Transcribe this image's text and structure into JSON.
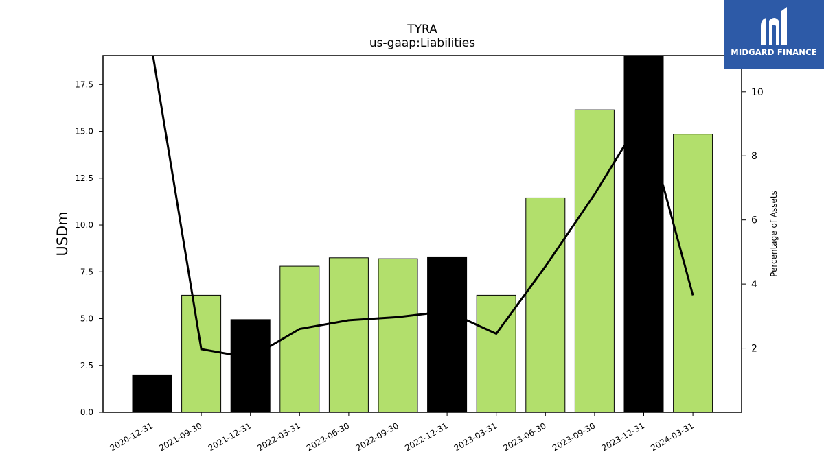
{
  "chart_data": {
    "type": "bar",
    "title": "TYRA",
    "subtitle": "us-gaap:Liabilities",
    "ylabel": "USDm",
    "y2label": "Percentage of Assets",
    "categories": [
      "2020-12-31",
      "2021-09-30",
      "2021-12-31",
      "2022-03-31",
      "2022-06-30",
      "2022-09-30",
      "2022-12-31",
      "2023-03-31",
      "2023-06-30",
      "2023-09-30",
      "2023-12-31",
      "2024-03-31"
    ],
    "values": [
      2.0,
      6.25,
      4.95,
      7.8,
      8.25,
      8.2,
      8.3,
      6.25,
      11.45,
      16.15,
      19.1,
      14.85
    ],
    "bar_colors": [
      "#000000",
      "#b2df6c",
      "#000000",
      "#b2df6c",
      "#b2df6c",
      "#b2df6c",
      "#000000",
      "#b2df6c",
      "#b2df6c",
      "#b2df6c",
      "#000000",
      "#b2df6c"
    ],
    "line_series": {
      "values": [
        11.3,
        1.97,
        1.7,
        2.6,
        2.87,
        2.97,
        3.15,
        2.45,
        4.55,
        6.8,
        9.3,
        3.65
      ]
    },
    "ylim": [
      0,
      19.05
    ],
    "y_ticks": [
      "0.0",
      "2.5",
      "5.0",
      "7.5",
      "10.0",
      "12.5",
      "15.0",
      "17.5"
    ],
    "y2lim": [
      0,
      11.13
    ],
    "y2_ticks": [
      "2",
      "4",
      "6",
      "8",
      "10"
    ],
    "grid": false,
    "line_color": "#000000"
  },
  "logo": {
    "text": "MIDGARD FINANCE",
    "background": "#2d5aa7"
  }
}
